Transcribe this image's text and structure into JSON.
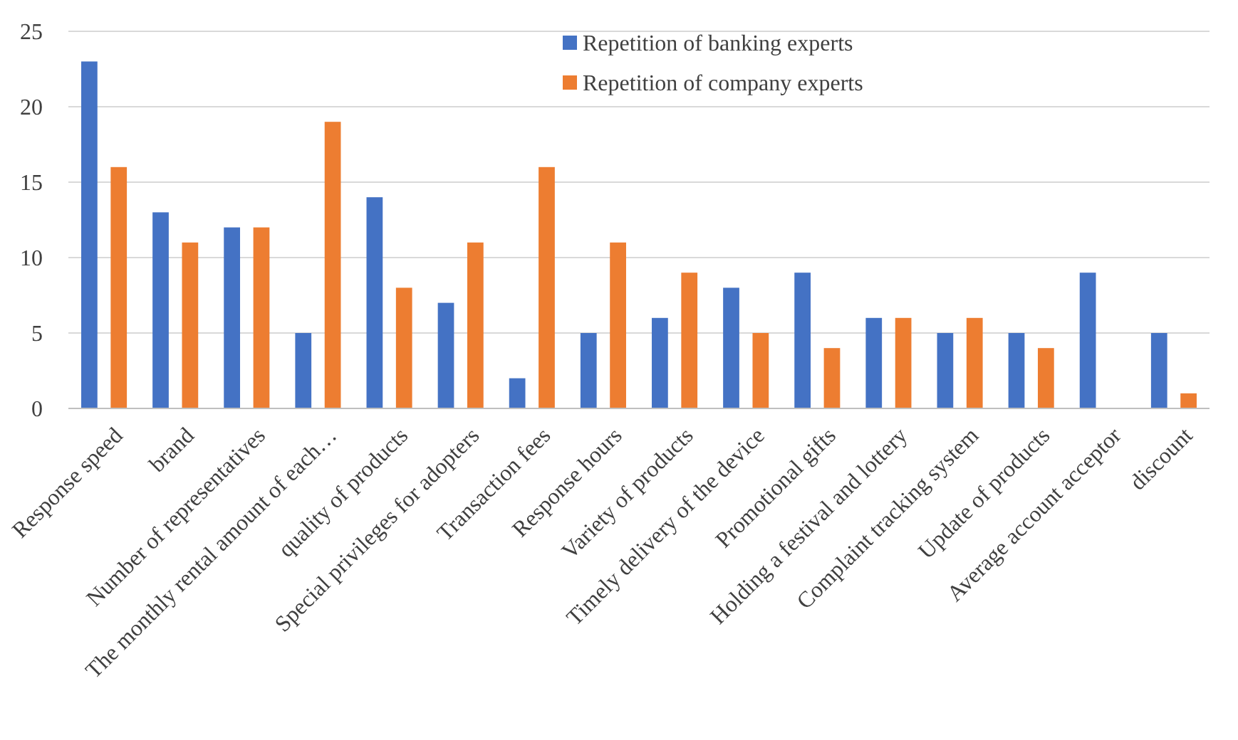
{
  "chart_data": {
    "type": "bar",
    "categories": [
      "Response speed",
      "brand",
      "Number of representatives",
      "The monthly rental amount of each…",
      "quality of products",
      "Special privileges for adopters",
      "Transaction fees",
      "Response hours",
      "Variety of products",
      "Timely delivery of the device",
      "Promotional gifts",
      "Holding a festival and lottery",
      "Complaint tracking system",
      "Update of products",
      "Average account acceptor",
      "discount"
    ],
    "series": [
      {
        "name": "Repetition of banking experts",
        "color": "#4472c4",
        "values": [
          23,
          13,
          12,
          5,
          14,
          7,
          2,
          5,
          6,
          8,
          9,
          6,
          5,
          5,
          9,
          5
        ]
      },
      {
        "name": "Repetition of company experts",
        "color": "#ed7d31",
        "values": [
          16,
          11,
          12,
          19,
          8,
          11,
          16,
          11,
          9,
          5,
          4,
          6,
          6,
          4,
          0,
          1
        ]
      }
    ],
    "ylim": [
      0,
      25
    ],
    "yticks": [
      0,
      5,
      10,
      15,
      20,
      25
    ],
    "grid": "y",
    "legend": "top"
  }
}
